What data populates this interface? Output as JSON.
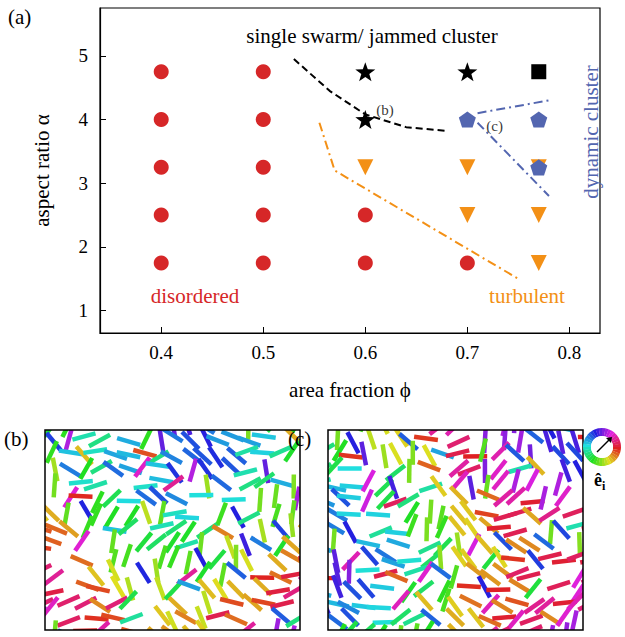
{
  "chart_data": {
    "type": "scatter",
    "panel_label": "(a)",
    "xlabel": "area fraction ϕ",
    "ylabel": "aspect ratio α",
    "xlim": [
      0.34,
      0.83
    ],
    "xticks": [
      0.4,
      0.5,
      0.6,
      0.7,
      0.8
    ],
    "ylim": [
      0.65,
      5.75
    ],
    "yticks": [
      1,
      2,
      3,
      4,
      5
    ],
    "grid": false,
    "series": [
      {
        "type": "scatter",
        "marker": "circle",
        "color": "#d62728",
        "values": [
          [
            0.4,
            1.75
          ],
          [
            0.4,
            2.5
          ],
          [
            0.4,
            3.25
          ],
          [
            0.4,
            4.0
          ],
          [
            0.4,
            4.75
          ],
          [
            0.5,
            1.75
          ],
          [
            0.5,
            2.5
          ],
          [
            0.5,
            3.25
          ],
          [
            0.5,
            4.0
          ],
          [
            0.5,
            4.75
          ],
          [
            0.6,
            1.75
          ],
          [
            0.6,
            2.5
          ],
          [
            0.7,
            1.75
          ]
        ]
      },
      {
        "type": "scatter",
        "marker": "triangle_down",
        "color": "#f39016",
        "values": [
          [
            0.6,
            3.25
          ],
          [
            0.7,
            2.5
          ],
          [
            0.7,
            3.25
          ],
          [
            0.77,
            1.75
          ],
          [
            0.77,
            2.5
          ],
          [
            0.77,
            3.25
          ]
        ]
      },
      {
        "type": "scatter",
        "marker": "pentagon",
        "color": "#5366b0",
        "values": [
          [
            0.7,
            4.0
          ],
          [
            0.77,
            3.25
          ],
          [
            0.77,
            4.0
          ]
        ]
      },
      {
        "type": "scatter",
        "marker": "star",
        "color": "#000000",
        "values": [
          [
            0.6,
            4.0
          ],
          [
            0.6,
            4.75
          ],
          [
            0.7,
            4.75
          ]
        ]
      },
      {
        "type": "scatter",
        "marker": "square",
        "color": "#000000",
        "values": [
          [
            0.77,
            4.75
          ]
        ]
      },
      {
        "type": "line",
        "line_style": "dashed",
        "color": "#000000",
        "values": [
          [
            0.53,
            4.95
          ],
          [
            0.565,
            4.45
          ],
          [
            0.6,
            4.08
          ],
          [
            0.64,
            3.88
          ],
          [
            0.68,
            3.82
          ]
        ]
      },
      {
        "type": "line",
        "line_style": "dashdot",
        "color": "#5366b0",
        "values": [
          [
            0.71,
            4.1
          ],
          [
            0.78,
            4.3
          ]
        ]
      },
      {
        "type": "line",
        "line_style": "dashdot",
        "color": "#5366b0",
        "values": [
          [
            0.71,
            3.95
          ],
          [
            0.78,
            2.8
          ]
        ]
      },
      {
        "type": "line",
        "line_style": "dashdot",
        "color": "#f39016",
        "values": [
          [
            0.555,
            3.95
          ],
          [
            0.57,
            3.2
          ],
          [
            0.75,
            1.5
          ]
        ]
      }
    ],
    "point_labels": [
      {
        "text": "(b)",
        "x": 0.6,
        "y": 4.0
      },
      {
        "text": "(c)",
        "x": 0.7,
        "y": 4.0
      }
    ],
    "annotations": [
      {
        "text": "single swarm/ jammed cluster",
        "color": "#000000"
      },
      {
        "text": "disordered",
        "color": "#d62728"
      },
      {
        "text": "turbulent",
        "color": "#f39016"
      },
      {
        "text": "dynamic cluster",
        "color": "#5366b0"
      }
    ]
  },
  "snapshots": [
    {
      "label": "(b)"
    },
    {
      "label": "(c)"
    }
  ],
  "color_key_label": {
    "symbol": "ê",
    "subscript": "i"
  }
}
